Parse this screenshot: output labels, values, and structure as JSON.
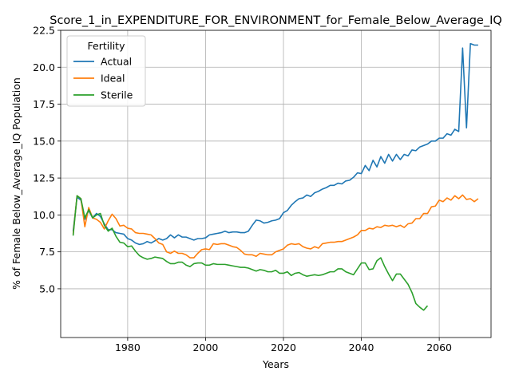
{
  "chart_data": {
    "type": "line",
    "title": "Score_1_in_EXPENDITURE_FOR_ENVIRONMENT_for_Female_Below_Average_IQ",
    "xlabel": "Years",
    "ylabel": "% of Female Below_Average_IQ Population",
    "xlim": [
      1962.8,
      2073.3
    ],
    "ylim": [
      1.7,
      22.5
    ],
    "xticks": [
      1980,
      2000,
      2020,
      2040,
      2060
    ],
    "xtick_labels": [
      "1980",
      "2000",
      "2020",
      "2040",
      "2060"
    ],
    "yticks": [
      5.0,
      7.5,
      10.0,
      12.5,
      15.0,
      17.5,
      20.0,
      22.5
    ],
    "ytick_labels": [
      "5.0",
      "7.5",
      "10.0",
      "12.5",
      "15.0",
      "17.5",
      "20.0",
      "22.5"
    ],
    "grid": true,
    "legend": {
      "title": "Fertility",
      "position": "top-left"
    },
    "series": [
      {
        "name": "Actual",
        "color": "#1f77b4",
        "x": [
          1966,
          1967,
          1968,
          1969,
          1970,
          1971,
          1972,
          1973,
          1974,
          1975,
          1976,
          1977,
          1978,
          1979,
          1980,
          1981,
          1982,
          1983,
          1984,
          1985,
          1986,
          1987,
          1988,
          1989,
          1990,
          1991,
          1992,
          1993,
          1994,
          1995,
          1996,
          1997,
          1998,
          1999,
          2000,
          2001,
          2002,
          2003,
          2004,
          2005,
          2006,
          2007,
          2008,
          2009,
          2010,
          2011,
          2012,
          2013,
          2014,
          2015,
          2016,
          2017,
          2018,
          2019,
          2020,
          2021,
          2022,
          2023,
          2024,
          2025,
          2026,
          2027,
          2028,
          2029,
          2030,
          2031,
          2032,
          2033,
          2034,
          2035,
          2036,
          2037,
          2038,
          2039,
          2040,
          2041,
          2042,
          2043,
          2044,
          2045,
          2046,
          2047,
          2048,
          2049,
          2050,
          2051,
          2052,
          2053,
          2054,
          2055,
          2056,
          2057,
          2058,
          2059,
          2060,
          2061,
          2062,
          2063,
          2064,
          2065,
          2066,
          2067,
          2068,
          2069,
          2070
        ],
        "y": [
          8.9,
          11.2,
          11.0,
          9.7,
          10.3,
          9.8,
          10.1,
          9.9,
          9.4,
          9.0,
          9.0,
          8.8,
          8.75,
          8.7,
          8.4,
          8.3,
          8.1,
          8.0,
          8.05,
          8.2,
          8.1,
          8.25,
          8.4,
          8.3,
          8.4,
          8.65,
          8.45,
          8.65,
          8.5,
          8.5,
          8.4,
          8.3,
          8.4,
          8.4,
          8.45,
          8.65,
          8.7,
          8.75,
          8.8,
          8.9,
          8.8,
          8.85,
          8.85,
          8.8,
          8.8,
          8.9,
          9.3,
          9.65,
          9.6,
          9.45,
          9.5,
          9.6,
          9.65,
          9.75,
          10.15,
          10.3,
          10.65,
          10.9,
          11.1,
          11.15,
          11.35,
          11.25,
          11.5,
          11.6,
          11.75,
          11.85,
          12.0,
          12.0,
          12.15,
          12.1,
          12.3,
          12.35,
          12.55,
          12.85,
          12.8,
          13.35,
          13.0,
          13.7,
          13.25,
          13.95,
          13.5,
          14.1,
          13.65,
          14.1,
          13.75,
          14.1,
          14.0,
          14.4,
          14.35,
          14.6,
          14.7,
          14.8,
          15.0,
          15.0,
          15.2,
          15.2,
          15.5,
          15.4,
          15.8,
          15.65,
          21.3,
          15.9,
          21.6,
          21.5,
          21.5
        ]
      },
      {
        "name": "Ideal",
        "color": "#ff7f0e",
        "x": [
          1966,
          1967,
          1968,
          1969,
          1970,
          1971,
          1972,
          1973,
          1974,
          1975,
          1976,
          1977,
          1978,
          1979,
          1980,
          1981,
          1982,
          1983,
          1984,
          1985,
          1986,
          1987,
          1988,
          1989,
          1990,
          1991,
          1992,
          1993,
          1994,
          1995,
          1996,
          1997,
          1998,
          1999,
          2000,
          2001,
          2002,
          2003,
          2004,
          2005,
          2006,
          2007,
          2008,
          2009,
          2010,
          2011,
          2012,
          2013,
          2014,
          2015,
          2016,
          2017,
          2018,
          2019,
          2020,
          2021,
          2022,
          2023,
          2024,
          2025,
          2026,
          2027,
          2028,
          2029,
          2030,
          2031,
          2032,
          2033,
          2034,
          2035,
          2036,
          2037,
          2038,
          2039,
          2040,
          2041,
          2042,
          2043,
          2044,
          2045,
          2046,
          2047,
          2048,
          2049,
          2050,
          2051,
          2052,
          2053,
          2054,
          2055,
          2056,
          2057,
          2058,
          2059,
          2060,
          2061,
          2062,
          2063,
          2064,
          2065,
          2066,
          2067,
          2068,
          2069,
          2070
        ],
        "y": [
          8.7,
          11.3,
          11.1,
          9.2,
          10.5,
          9.8,
          9.7,
          9.5,
          9.05,
          9.6,
          10.05,
          9.75,
          9.25,
          9.3,
          9.1,
          9.05,
          8.8,
          8.75,
          8.75,
          8.7,
          8.65,
          8.4,
          8.1,
          8.0,
          7.5,
          7.4,
          7.55,
          7.4,
          7.4,
          7.3,
          7.1,
          7.1,
          7.4,
          7.65,
          7.7,
          7.65,
          8.05,
          8.0,
          8.05,
          8.05,
          7.95,
          7.85,
          7.8,
          7.6,
          7.35,
          7.3,
          7.3,
          7.2,
          7.4,
          7.35,
          7.3,
          7.3,
          7.5,
          7.6,
          7.7,
          7.95,
          8.05,
          8.0,
          8.05,
          7.85,
          7.75,
          7.7,
          7.85,
          7.75,
          8.05,
          8.1,
          8.15,
          8.15,
          8.2,
          8.2,
          8.3,
          8.4,
          8.5,
          8.65,
          8.95,
          8.95,
          9.1,
          9.05,
          9.2,
          9.15,
          9.3,
          9.25,
          9.3,
          9.2,
          9.3,
          9.15,
          9.4,
          9.45,
          9.75,
          9.75,
          10.1,
          10.1,
          10.55,
          10.6,
          11.0,
          10.9,
          11.15,
          11.0,
          11.3,
          11.1,
          11.35,
          11.05,
          11.1,
          10.9,
          11.1
        ]
      },
      {
        "name": "Sterile",
        "color": "#2ca02c",
        "x": [
          1966,
          1967,
          1968,
          1969,
          1970,
          1971,
          1972,
          1973,
          1974,
          1975,
          1976,
          1977,
          1978,
          1979,
          1980,
          1981,
          1982,
          1983,
          1984,
          1985,
          1986,
          1987,
          1988,
          1989,
          1990,
          1991,
          1992,
          1993,
          1994,
          1995,
          1996,
          1997,
          1998,
          1999,
          2000,
          2001,
          2002,
          2003,
          2004,
          2005,
          2006,
          2007,
          2008,
          2009,
          2010,
          2011,
          2012,
          2013,
          2014,
          2015,
          2016,
          2017,
          2018,
          2019,
          2020,
          2021,
          2022,
          2023,
          2024,
          2025,
          2026,
          2027,
          2028,
          2029,
          2030,
          2031,
          2032,
          2033,
          2034,
          2035,
          2036,
          2037,
          2038,
          2039,
          2040,
          2041,
          2042,
          2043,
          2044,
          2045,
          2046,
          2047,
          2048,
          2049,
          2050,
          2051,
          2052,
          2053,
          2054,
          2055,
          2056,
          2057
        ],
        "y": [
          8.6,
          11.3,
          11.1,
          9.8,
          10.35,
          9.8,
          10.0,
          10.1,
          9.3,
          8.9,
          9.1,
          8.55,
          8.15,
          8.1,
          7.85,
          7.9,
          7.55,
          7.25,
          7.1,
          7.0,
          7.05,
          7.15,
          7.1,
          7.05,
          6.85,
          6.7,
          6.7,
          6.8,
          6.8,
          6.6,
          6.5,
          6.7,
          6.75,
          6.75,
          6.6,
          6.6,
          6.7,
          6.65,
          6.65,
          6.65,
          6.6,
          6.55,
          6.5,
          6.45,
          6.45,
          6.4,
          6.3,
          6.2,
          6.3,
          6.25,
          6.15,
          6.15,
          6.25,
          6.05,
          6.05,
          6.15,
          5.9,
          6.05,
          6.1,
          5.95,
          5.85,
          5.9,
          5.95,
          5.9,
          5.95,
          6.05,
          6.15,
          6.15,
          6.35,
          6.35,
          6.15,
          6.05,
          5.95,
          6.35,
          6.75,
          6.75,
          6.3,
          6.35,
          6.9,
          7.1,
          6.5,
          6.0,
          5.55,
          6.0,
          6.0,
          5.65,
          5.3,
          4.75,
          4.0,
          3.75,
          3.55,
          3.85
        ]
      }
    ]
  }
}
